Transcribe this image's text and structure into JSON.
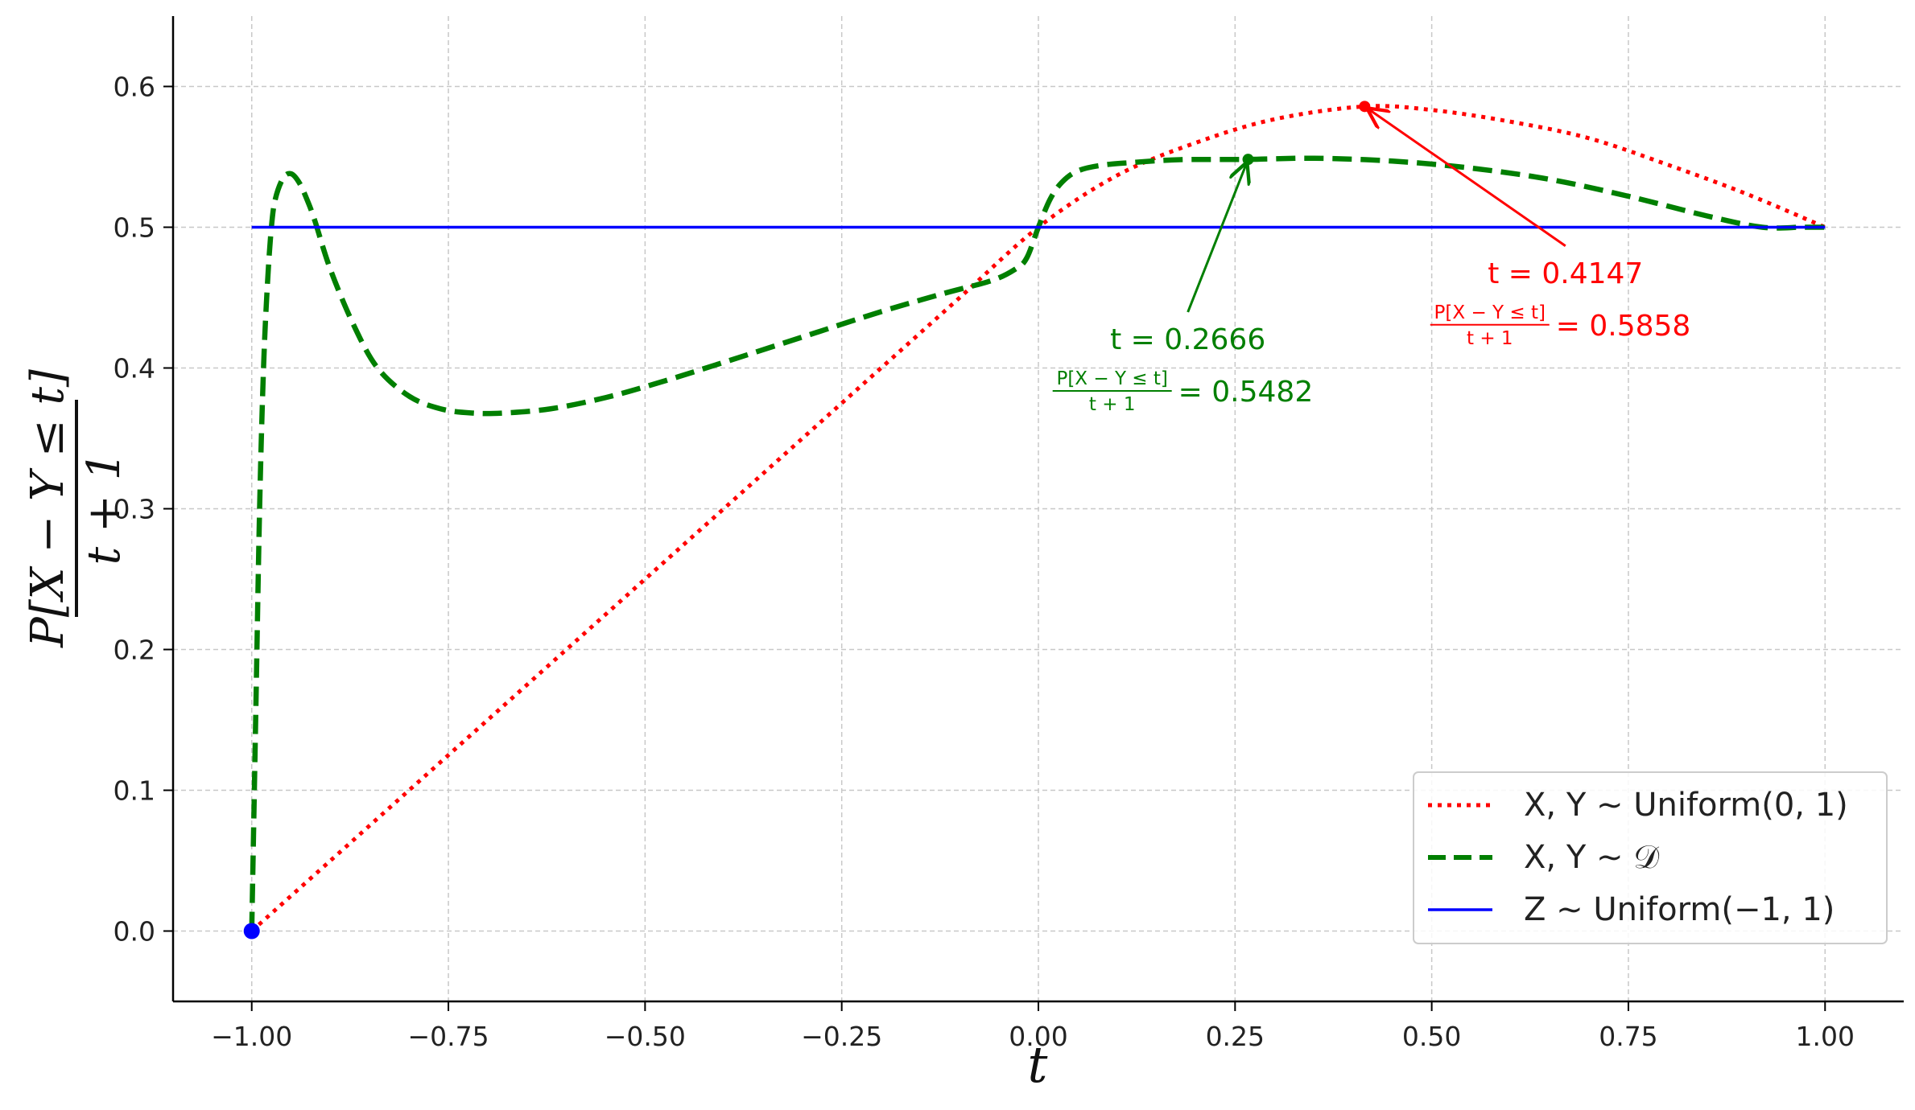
{
  "chart_data": {
    "type": "line",
    "title": "",
    "xlabel": "t",
    "ylabel": {
      "numerator": "P[X − Y ≤ t]",
      "denominator": "t + 1"
    },
    "xlim": [
      -1.1,
      1.1
    ],
    "ylim": [
      -0.05,
      0.65
    ],
    "grid": true,
    "legend_position": "bottom-right",
    "xticks": [
      -1.0,
      -0.75,
      -0.5,
      -0.25,
      0.0,
      0.25,
      0.5,
      0.75,
      1.0
    ],
    "xtick_labels": [
      "−1.00",
      "−0.75",
      "−0.50",
      "−0.25",
      "0.00",
      "0.25",
      "0.50",
      "0.75",
      "1.00"
    ],
    "yticks": [
      0.0,
      0.1,
      0.2,
      0.3,
      0.4,
      0.5,
      0.6
    ],
    "ytick_labels": [
      "0.0",
      "0.1",
      "0.2",
      "0.3",
      "0.4",
      "0.5",
      "0.6"
    ],
    "series": [
      {
        "name": "X, Y ∼ Uniform(0, 1)",
        "color": "#ff0000",
        "style": "dotted",
        "x": [
          -1.0,
          -0.9,
          -0.8,
          -0.7,
          -0.6,
          -0.5,
          -0.4,
          -0.3,
          -0.2,
          -0.1,
          0.0,
          0.1,
          0.2,
          0.3,
          0.4147,
          0.5,
          0.6,
          0.7,
          0.8,
          0.9,
          1.0
        ],
        "y": [
          0.0,
          0.05,
          0.1,
          0.15,
          0.2,
          0.25,
          0.3,
          0.35,
          0.4,
          0.45,
          0.5,
          0.5368,
          0.56,
          0.5767,
          0.5858,
          0.5833,
          0.575,
          0.5632,
          0.5444,
          0.5237,
          0.5
        ]
      },
      {
        "name": "X, Y ∼ 𝒟",
        "color": "#007f00",
        "style": "dashed",
        "x": [
          -1.0,
          -0.995,
          -0.99,
          -0.985,
          -0.98,
          -0.975,
          -0.97,
          -0.96,
          -0.95,
          -0.94,
          -0.93,
          -0.92,
          -0.9,
          -0.87,
          -0.84,
          -0.8,
          -0.76,
          -0.72,
          -0.68,
          -0.62,
          -0.55,
          -0.48,
          -0.4,
          -0.3,
          -0.2,
          -0.12,
          -0.06,
          -0.03,
          -0.015,
          0.0,
          0.015,
          0.03,
          0.05,
          0.08,
          0.12,
          0.18,
          0.2666,
          0.35,
          0.45,
          0.55,
          0.65,
          0.75,
          0.85,
          0.92,
          0.97,
          1.0
        ],
        "y": [
          0.0,
          0.15,
          0.3,
          0.4,
          0.46,
          0.5,
          0.52,
          0.535,
          0.538,
          0.532,
          0.52,
          0.505,
          0.47,
          0.43,
          0.4,
          0.38,
          0.371,
          0.368,
          0.368,
          0.371,
          0.379,
          0.39,
          0.404,
          0.422,
          0.44,
          0.453,
          0.462,
          0.47,
          0.478,
          0.5,
          0.52,
          0.532,
          0.54,
          0.544,
          0.546,
          0.548,
          0.5482,
          0.549,
          0.547,
          0.542,
          0.534,
          0.522,
          0.508,
          0.5,
          0.5,
          0.5
        ]
      },
      {
        "name": "Z ∼ Uniform(−1, 1)",
        "color": "#0000ff",
        "style": "solid",
        "x": [
          -1.0,
          1.0
        ],
        "y": [
          0.5,
          0.5
        ]
      }
    ],
    "points": [
      {
        "x": -1.0,
        "y": 0.0,
        "color": "#0000ff"
      },
      {
        "x": 0.2666,
        "y": 0.5482,
        "color": "#007f00"
      },
      {
        "x": 0.4147,
        "y": 0.5858,
        "color": "#ff0000"
      }
    ],
    "annotations": [
      {
        "color": "#007f00",
        "point": {
          "x": 0.2666,
          "y": 0.5482
        },
        "text_at": {
          "x": 0.19,
          "y": 0.418
        },
        "line1": "t = 0.2666",
        "frac_num": "P[X − Y ≤ t]",
        "frac_den": "t + 1",
        "value": "= 0.5482"
      },
      {
        "color": "#ff0000",
        "point": {
          "x": 0.4147,
          "y": 0.5858
        },
        "text_at": {
          "x": 0.67,
          "y": 0.465
        },
        "line1": "t = 0.4147",
        "frac_num": "P[X − Y ≤ t]",
        "frac_den": "t + 1",
        "value": "= 0.5858"
      }
    ]
  }
}
